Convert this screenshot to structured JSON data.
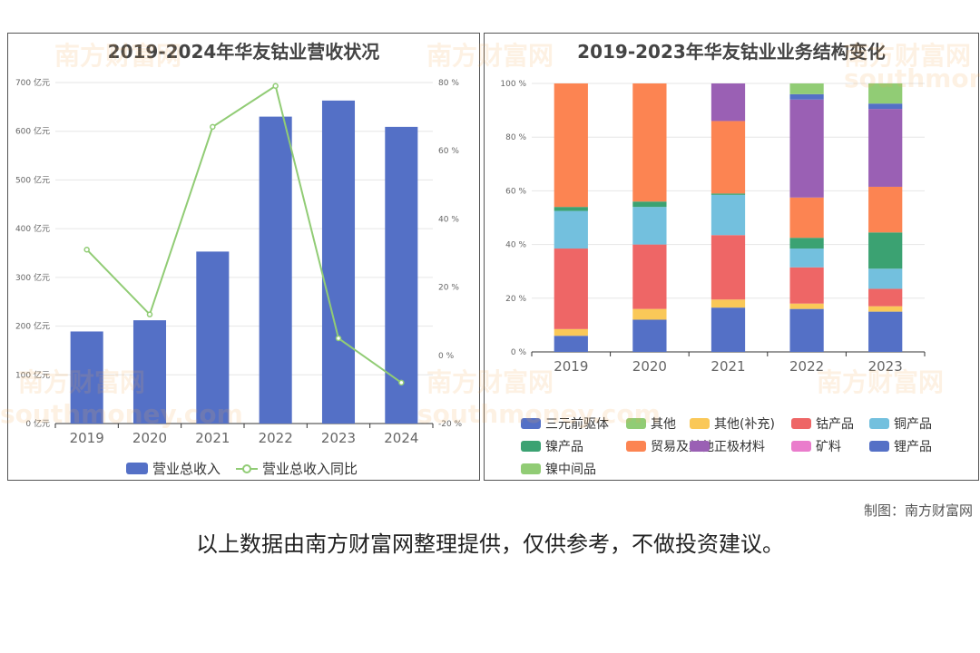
{
  "colors": {
    "bar": "#5470c6",
    "line": "#91cc75",
    "grid": "#e6e6e6",
    "axis": "#666666"
  },
  "chart_data": [
    {
      "type": "bar",
      "title": "2019-2024年华友钴业营收状况",
      "categories": [
        "2019",
        "2020",
        "2021",
        "2022",
        "2023",
        "2024"
      ],
      "series": [
        {
          "name": "营业总收入",
          "type": "bar",
          "axis": "left",
          "color": "#5470c6",
          "values": [
            189,
            212,
            353,
            630,
            663,
            609
          ]
        },
        {
          "name": "营业总收入同比",
          "type": "line",
          "axis": "right",
          "color": "#91cc75",
          "values": [
            31,
            12,
            67,
            79,
            5,
            -8
          ]
        }
      ],
      "y_left": {
        "ticks": [
          "0 亿元",
          "100 亿元",
          "200 亿元",
          "300 亿元",
          "400 亿元",
          "500 亿元",
          "600 亿元",
          "700 亿元"
        ],
        "min": 0,
        "max": 700
      },
      "y_right": {
        "ticks": [
          "-20 %",
          "0 %",
          "20 %",
          "40 %",
          "60 %",
          "80 %"
        ],
        "min": -20,
        "max": 80
      },
      "grid": true,
      "legend": "bottom"
    },
    {
      "type": "bar",
      "stacked": true,
      "title": "2019-2023年华友钴业业务结构变化",
      "categories": [
        "2019",
        "2020",
        "2021",
        "2022",
        "2023"
      ],
      "y_ticks": [
        "0 %",
        "20 %",
        "40 %",
        "60 %",
        "80 %",
        "100 %"
      ],
      "ylim": [
        0,
        100
      ],
      "series": [
        {
          "name": "三元前驱体",
          "color": "#5470c6",
          "values": [
            6,
            12,
            16.5,
            16,
            15
          ]
        },
        {
          "name": "其他",
          "color": "#91cc75",
          "values": [
            0,
            0,
            0,
            0,
            0
          ]
        },
        {
          "name": "其他(补充)",
          "color": "#fac858",
          "values": [
            2.5,
            4,
            3,
            2,
            2
          ]
        },
        {
          "name": "钴产品",
          "color": "#ee6666",
          "values": [
            30,
            24,
            24,
            13.5,
            6.5
          ]
        },
        {
          "name": "铜产品",
          "color": "#73c0de",
          "values": [
            14,
            14,
            15,
            7,
            7.5
          ]
        },
        {
          "name": "镍产品",
          "color": "#3ba272",
          "values": [
            1.5,
            2,
            0.5,
            4,
            13.5
          ]
        },
        {
          "name": "贸易及其他",
          "color": "#fc8452",
          "values": [
            46,
            44,
            27,
            15,
            17
          ]
        },
        {
          "name": "正极材料",
          "color": "#9a60b4",
          "values": [
            0,
            0,
            14,
            36.5,
            29
          ]
        },
        {
          "name": "矿料",
          "color": "#ea7ccc",
          "values": [
            0,
            0,
            0,
            0,
            0
          ]
        },
        {
          "name": "锂产品",
          "color": "#5470c6",
          "values": [
            0,
            0,
            0,
            2,
            2
          ]
        },
        {
          "name": "镍中间品",
          "color": "#91cc75",
          "values": [
            0,
            0,
            0,
            4,
            7.5
          ]
        }
      ],
      "grid": true,
      "legend": "bottom"
    }
  ],
  "watermark": {
    "cn": "南方财富网",
    "en": "southmoney.com"
  },
  "footer": {
    "credit": "制图：南方财富网",
    "disclaimer": "以上数据由南方财富网整理提供，仅供参考，不做投资建议。"
  }
}
